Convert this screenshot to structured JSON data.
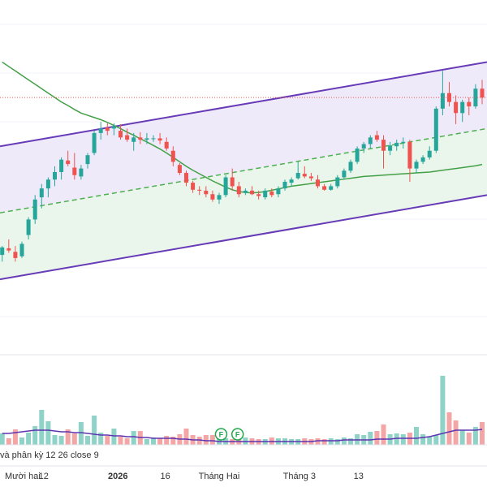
{
  "chart_data": {
    "type": "candlestick",
    "colors": {
      "up": "#26a69a",
      "down": "#ef5350",
      "volume_up": "#8fd3c8",
      "volume_down": "#f4a5a5",
      "moving_average": "#43a047",
      "volume_average": "#5e35b1",
      "channel_line": "#673ab7",
      "channel_upper_fill": "#ece8f8",
      "channel_lower_fill": "#e8f5e9",
      "midline": "#4caf50",
      "last_price_line": "#ef5350",
      "grid": "#f0f3fa",
      "separator": "#e0e3eb"
    },
    "candles": [
      [
        0.75,
        0.95,
        0.6,
        0.92
      ],
      [
        0.9,
        1.1,
        0.8,
        0.85
      ],
      [
        0.82,
        0.95,
        0.6,
        0.68
      ],
      [
        0.72,
        1.05,
        0.68,
        1.0
      ],
      [
        1.2,
        1.6,
        1.1,
        1.55
      ],
      [
        1.55,
        2.1,
        1.45,
        2.0
      ],
      [
        2.05,
        2.35,
        1.8,
        2.25
      ],
      [
        2.25,
        2.5,
        2.05,
        2.45
      ],
      [
        2.45,
        2.75,
        2.3,
        2.62
      ],
      [
        2.62,
        2.95,
        2.45,
        2.9
      ],
      [
        2.88,
        3.1,
        2.75,
        2.8
      ],
      [
        2.72,
        3.05,
        2.45,
        2.55
      ],
      [
        2.52,
        2.78,
        2.45,
        2.7
      ],
      [
        2.8,
        3.05,
        2.7,
        3.0
      ],
      [
        3.05,
        3.55,
        3.0,
        3.5
      ],
      [
        3.5,
        3.75,
        3.35,
        3.6
      ],
      [
        3.62,
        3.72,
        3.45,
        3.55
      ],
      [
        3.6,
        3.72,
        3.45,
        3.65
      ],
      [
        3.55,
        3.7,
        3.35,
        3.4
      ],
      [
        3.45,
        3.6,
        3.3,
        3.35
      ],
      [
        3.3,
        3.5,
        3.1,
        3.4
      ],
      [
        3.4,
        3.52,
        3.25,
        3.35
      ],
      [
        3.35,
        3.5,
        3.25,
        3.38
      ],
      [
        3.38,
        3.45,
        3.3,
        3.38
      ],
      [
        3.38,
        3.5,
        3.25,
        3.33
      ],
      [
        3.3,
        3.4,
        3.1,
        3.15
      ],
      [
        3.1,
        3.2,
        2.75,
        2.85
      ],
      [
        2.78,
        2.82,
        2.55,
        2.6
      ],
      [
        2.6,
        2.65,
        2.3,
        2.38
      ],
      [
        2.38,
        2.42,
        2.15,
        2.22
      ],
      [
        2.22,
        2.3,
        2.1,
        2.2
      ],
      [
        2.2,
        2.3,
        2.05,
        2.12
      ],
      [
        2.12,
        2.2,
        1.95,
        2.0
      ],
      [
        2.0,
        2.15,
        1.9,
        2.1
      ],
      [
        2.1,
        2.55,
        2.05,
        2.5
      ],
      [
        2.5,
        2.7,
        2.2,
        2.3
      ],
      [
        2.3,
        2.4,
        2.05,
        2.12
      ],
      [
        2.15,
        2.25,
        2.1,
        2.2
      ],
      [
        2.2,
        2.3,
        2.1,
        2.12
      ],
      [
        2.12,
        2.2,
        2.0,
        2.08
      ],
      [
        2.05,
        2.25,
        2.0,
        2.2
      ],
      [
        2.18,
        2.25,
        2.05,
        2.1
      ],
      [
        2.12,
        2.3,
        2.05,
        2.25
      ],
      [
        2.25,
        2.45,
        2.2,
        2.4
      ],
      [
        2.38,
        2.5,
        2.3,
        2.45
      ],
      [
        2.48,
        2.85,
        2.45,
        2.6
      ],
      [
        2.58,
        2.75,
        2.48,
        2.52
      ],
      [
        2.52,
        2.6,
        2.42,
        2.48
      ],
      [
        2.45,
        2.55,
        2.25,
        2.3
      ],
      [
        2.3,
        2.35,
        2.2,
        2.22
      ],
      [
        2.22,
        2.35,
        2.2,
        2.3
      ],
      [
        2.3,
        2.55,
        2.25,
        2.5
      ],
      [
        2.5,
        2.7,
        2.45,
        2.65
      ],
      [
        2.65,
        2.9,
        2.6,
        2.85
      ],
      [
        2.85,
        3.2,
        2.8,
        3.15
      ],
      [
        3.15,
        3.3,
        3.05,
        3.25
      ],
      [
        3.25,
        3.45,
        3.15,
        3.4
      ],
      [
        3.45,
        3.55,
        3.3,
        3.35
      ],
      [
        3.35,
        3.45,
        2.7,
        3.1
      ],
      [
        3.1,
        3.3,
        3.0,
        3.22
      ],
      [
        3.2,
        3.35,
        3.1,
        3.28
      ],
      [
        3.28,
        3.4,
        3.15,
        3.3
      ],
      [
        3.3,
        3.35,
        2.4,
        2.7
      ],
      [
        2.7,
        2.9,
        2.6,
        2.85
      ],
      [
        2.85,
        3.0,
        2.8,
        2.95
      ],
      [
        2.95,
        3.2,
        2.9,
        3.1
      ],
      [
        3.1,
        4.1,
        3.05,
        4.05
      ],
      [
        4.05,
        4.9,
        3.9,
        4.4
      ],
      [
        4.4,
        4.65,
        4.1,
        4.2
      ],
      [
        4.2,
        4.35,
        3.7,
        3.95
      ],
      [
        3.95,
        4.25,
        3.75,
        4.2
      ],
      [
        4.2,
        4.3,
        3.9,
        4.1
      ],
      [
        4.1,
        4.6,
        4.05,
        4.5
      ],
      [
        4.5,
        4.7,
        4.15,
        4.3
      ]
    ],
    "volumes": [
      14,
      8,
      19,
      9,
      15,
      23,
      43,
      29,
      12,
      11,
      19,
      14,
      28,
      11,
      36,
      15,
      11,
      20,
      10,
      8,
      17,
      17,
      7,
      9,
      8,
      11,
      10,
      13,
      20,
      12,
      10,
      12,
      12,
      9,
      8,
      7,
      11,
      9,
      8,
      7,
      7,
      9,
      8,
      8,
      7,
      7,
      8,
      7,
      8,
      7,
      8,
      7,
      9,
      8,
      13,
      12,
      16,
      17,
      25,
      13,
      14,
      13,
      15,
      22,
      13,
      10,
      12,
      85,
      40,
      30,
      18,
      15,
      22,
      28
    ],
    "moving_average": [
      5.1,
      5.0,
      4.9,
      4.8,
      4.7,
      4.6,
      4.5,
      4.4,
      4.3,
      4.2,
      4.12,
      4.03,
      3.95,
      3.9,
      3.85,
      3.8,
      3.74,
      3.67,
      3.6,
      3.52,
      3.45,
      3.37,
      3.3,
      3.22,
      3.14,
      3.05,
      2.95,
      2.85,
      2.75,
      2.66,
      2.58,
      2.5,
      2.42,
      2.35,
      2.28,
      2.22,
      2.18,
      2.16,
      2.15,
      2.16,
      2.18,
      2.21,
      2.24,
      2.27,
      2.3,
      2.32,
      2.34,
      2.36,
      2.38,
      2.4,
      2.42,
      2.44,
      2.46,
      2.48,
      2.5,
      2.52,
      2.53,
      2.54,
      2.55,
      2.56,
      2.57,
      2.58,
      2.59,
      2.6,
      2.61,
      2.62,
      2.64,
      2.66,
      2.68,
      2.7,
      2.72,
      2.74,
      2.76,
      2.79
    ],
    "volume_average": [
      14,
      14,
      15,
      16,
      17,
      18,
      18,
      18,
      17,
      16,
      16,
      15,
      15,
      14,
      13,
      12,
      12,
      11,
      11,
      10,
      10,
      9,
      9,
      8,
      8,
      8,
      8,
      7,
      7,
      6,
      6,
      5,
      5,
      4,
      4,
      4,
      4,
      4,
      4,
      4,
      4,
      4,
      4,
      4,
      4,
      4,
      4,
      4,
      5,
      5,
      5,
      5,
      6,
      6,
      6,
      6,
      6,
      7,
      7,
      7,
      8,
      8,
      8,
      8,
      9,
      10,
      12,
      14,
      16,
      18,
      18,
      18,
      18,
      19
    ],
    "channel": {
      "upper": {
        "from": 0,
        "to": 4.0,
        "at_start": 3.2,
        "at_end": 5.1
      },
      "lower": {
        "from": 0,
        "to": 0.2,
        "at_start": 0.2,
        "at_end": 2.1
      },
      "mid": {
        "at_start": 1.7,
        "at_end": 3.6
      }
    },
    "last_price": 4.3,
    "y_range": [
      -1.5,
      6.5
    ],
    "volume_range": [
      0,
      100
    ],
    "x_axis_labels": [
      {
        "index": 0.4,
        "text": "Mười hai",
        "bold": false
      },
      {
        "index": 6.3,
        "text": "12",
        "bold": false
      },
      {
        "index": 17.6,
        "text": "2026",
        "bold": true
      },
      {
        "index": 24.8,
        "text": "16",
        "bold": false
      },
      {
        "index": 33.0,
        "text": "Tháng Hai",
        "bold": false
      },
      {
        "index": 45.2,
        "text": "Tháng 3",
        "bold": false
      },
      {
        "index": 54.2,
        "text": "13",
        "bold": false
      }
    ],
    "event_markers": [
      {
        "index": 33.3,
        "text": "F"
      },
      {
        "index": 35.8,
        "text": "F"
      }
    ],
    "legend": "và phân kỳ  12  26  close  9"
  }
}
